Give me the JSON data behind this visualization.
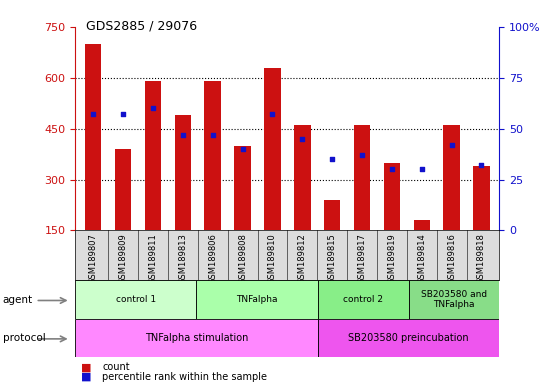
{
  "title": "GDS2885 / 29076",
  "samples": [
    "GSM189807",
    "GSM189809",
    "GSM189811",
    "GSM189813",
    "GSM189806",
    "GSM189808",
    "GSM189810",
    "GSM189812",
    "GSM189815",
    "GSM189817",
    "GSM189819",
    "GSM189814",
    "GSM189816",
    "GSM189818"
  ],
  "counts": [
    700,
    390,
    590,
    490,
    590,
    400,
    630,
    460,
    240,
    460,
    350,
    180,
    460,
    340
  ],
  "percentiles": [
    57,
    57,
    60,
    47,
    47,
    40,
    57,
    45,
    35,
    37,
    30,
    30,
    42,
    32
  ],
  "ylim_left": [
    150,
    750
  ],
  "ylim_right": [
    0,
    100
  ],
  "yticks_left": [
    150,
    300,
    450,
    600,
    750
  ],
  "yticks_right": [
    0,
    25,
    50,
    75,
    100
  ],
  "ytick_labels_right": [
    "0",
    "25",
    "50",
    "75",
    "100%"
  ],
  "bar_color": "#cc1111",
  "dot_color": "#1111cc",
  "agent_groups": [
    {
      "label": "control 1",
      "start": 0,
      "end": 4,
      "color": "#ccffcc"
    },
    {
      "label": "TNFalpha",
      "start": 4,
      "end": 8,
      "color": "#aaffaa"
    },
    {
      "label": "control 2",
      "start": 8,
      "end": 11,
      "color": "#88ee88"
    },
    {
      "label": "SB203580 and\nTNFalpha",
      "start": 11,
      "end": 14,
      "color": "#88dd88"
    }
  ],
  "protocol_groups": [
    {
      "label": "TNFalpha stimulation",
      "start": 0,
      "end": 8,
      "color": "#ff88ff"
    },
    {
      "label": "SB203580 preincubation",
      "start": 8,
      "end": 14,
      "color": "#ee55ee"
    }
  ],
  "legend_count_color": "#cc1111",
  "legend_pct_color": "#1111cc",
  "bg_color": "#ffffff",
  "left_axis_color": "#cc1111",
  "right_axis_color": "#1111cc",
  "sample_label_bg": "#dddddd",
  "grid_color": "#000000",
  "bar_width": 0.55
}
